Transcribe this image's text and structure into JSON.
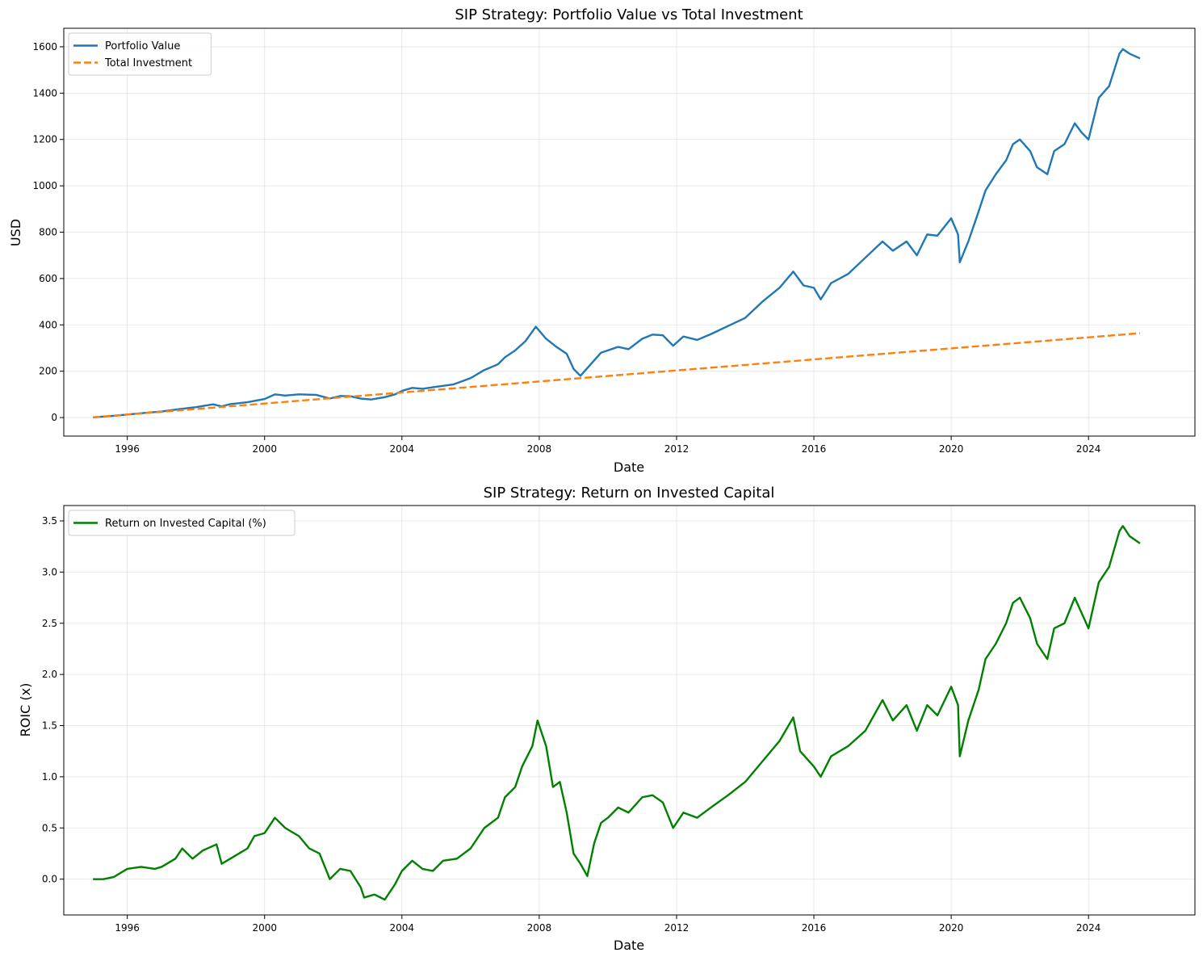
{
  "chart_data": [
    {
      "type": "line",
      "title": "SIP Strategy: Portfolio Value vs Total Investment",
      "xlabel": "Date",
      "ylabel": "USD",
      "xlim": [
        1994.15,
        2027.1
      ],
      "ylim": [
        -80,
        1680
      ],
      "xticks": [
        1996,
        2000,
        2004,
        2008,
        2012,
        2016,
        2020,
        2024
      ],
      "yticks": [
        0,
        200,
        400,
        600,
        800,
        1000,
        1200,
        1400,
        1600
      ],
      "grid": true,
      "legend": "top-left",
      "series": [
        {
          "name": "Portfolio Value",
          "color": "#1f77b4",
          "style": "solid",
          "points": [
            [
              1995.0,
              1
            ],
            [
              1995.5,
              6
            ],
            [
              1996.0,
              13
            ],
            [
              1996.5,
              20
            ],
            [
              1997.0,
              26
            ],
            [
              1997.5,
              36
            ],
            [
              1998.0,
              45
            ],
            [
              1998.5,
              57
            ],
            [
              1998.75,
              48
            ],
            [
              1999.0,
              58
            ],
            [
              1999.5,
              66
            ],
            [
              2000.0,
              80
            ],
            [
              2000.3,
              100
            ],
            [
              2000.6,
              95
            ],
            [
              2001.0,
              100
            ],
            [
              2001.5,
              98
            ],
            [
              2001.9,
              82
            ],
            [
              2002.2,
              93
            ],
            [
              2002.5,
              92
            ],
            [
              2002.8,
              82
            ],
            [
              2003.1,
              78
            ],
            [
              2003.5,
              88
            ],
            [
              2003.8,
              100
            ],
            [
              2004.0,
              115
            ],
            [
              2004.3,
              128
            ],
            [
              2004.6,
              124
            ],
            [
              2005.0,
              133
            ],
            [
              2005.5,
              143
            ],
            [
              2006.0,
              170
            ],
            [
              2006.4,
              205
            ],
            [
              2006.8,
              230
            ],
            [
              2007.0,
              260
            ],
            [
              2007.3,
              290
            ],
            [
              2007.6,
              330
            ],
            [
              2007.9,
              392
            ],
            [
              2008.2,
              340
            ],
            [
              2008.5,
              305
            ],
            [
              2008.8,
              275
            ],
            [
              2009.0,
              210
            ],
            [
              2009.2,
              180
            ],
            [
              2009.5,
              230
            ],
            [
              2009.8,
              280
            ],
            [
              2010.0,
              290
            ],
            [
              2010.3,
              305
            ],
            [
              2010.6,
              295
            ],
            [
              2011.0,
              340
            ],
            [
              2011.3,
              358
            ],
            [
              2011.6,
              355
            ],
            [
              2011.9,
              310
            ],
            [
              2012.2,
              350
            ],
            [
              2012.6,
              335
            ],
            [
              2013.0,
              360
            ],
            [
              2013.5,
              395
            ],
            [
              2014.0,
              430
            ],
            [
              2014.5,
              500
            ],
            [
              2015.0,
              560
            ],
            [
              2015.4,
              630
            ],
            [
              2015.7,
              570
            ],
            [
              2016.0,
              560
            ],
            [
              2016.2,
              510
            ],
            [
              2016.5,
              580
            ],
            [
              2017.0,
              620
            ],
            [
              2017.5,
              690
            ],
            [
              2018.0,
              760
            ],
            [
              2018.3,
              720
            ],
            [
              2018.7,
              760
            ],
            [
              2019.0,
              700
            ],
            [
              2019.3,
              790
            ],
            [
              2019.6,
              785
            ],
            [
              2020.0,
              860
            ],
            [
              2020.2,
              790
            ],
            [
              2020.25,
              670
            ],
            [
              2020.5,
              760
            ],
            [
              2020.8,
              890
            ],
            [
              2021.0,
              980
            ],
            [
              2021.3,
              1050
            ],
            [
              2021.6,
              1110
            ],
            [
              2021.8,
              1180
            ],
            [
              2022.0,
              1200
            ],
            [
              2022.3,
              1150
            ],
            [
              2022.5,
              1080
            ],
            [
              2022.8,
              1050
            ],
            [
              2023.0,
              1150
            ],
            [
              2023.3,
              1180
            ],
            [
              2023.6,
              1270
            ],
            [
              2023.8,
              1230
            ],
            [
              2024.0,
              1200
            ],
            [
              2024.3,
              1380
            ],
            [
              2024.6,
              1430
            ],
            [
              2024.9,
              1570
            ],
            [
              2025.0,
              1590
            ],
            [
              2025.2,
              1570
            ],
            [
              2025.5,
              1550
            ]
          ]
        },
        {
          "name": "Total Investment",
          "color": "#ff7f0e",
          "style": "dashed",
          "points": [
            [
              1995.0,
              1
            ],
            [
              2025.5,
              364
            ]
          ]
        }
      ]
    },
    {
      "type": "line",
      "title": "SIP Strategy: Return on Invested Capital",
      "xlabel": "Date",
      "ylabel": "ROIC (x)",
      "xlim": [
        1994.15,
        2027.1
      ],
      "ylim": [
        -0.35,
        3.65
      ],
      "xticks": [
        1996,
        2000,
        2004,
        2008,
        2012,
        2016,
        2020,
        2024
      ],
      "yticks": [
        0.0,
        0.5,
        1.0,
        1.5,
        2.0,
        2.5,
        3.0,
        3.5
      ],
      "ytick_labels": [
        "0.0",
        "0.5",
        "1.0",
        "1.5",
        "2.0",
        "2.5",
        "3.0",
        "3.5"
      ],
      "grid": true,
      "legend": "top-left",
      "series": [
        {
          "name": "Return on Invested Capital (%)",
          "color": "#008000",
          "style": "solid",
          "points": [
            [
              1995.0,
              0.0
            ],
            [
              1995.3,
              0.0
            ],
            [
              1995.6,
              0.02
            ],
            [
              1996.0,
              0.1
            ],
            [
              1996.4,
              0.12
            ],
            [
              1996.8,
              0.1
            ],
            [
              1997.0,
              0.12
            ],
            [
              1997.4,
              0.2
            ],
            [
              1997.6,
              0.3
            ],
            [
              1997.9,
              0.2
            ],
            [
              1998.2,
              0.28
            ],
            [
              1998.6,
              0.34
            ],
            [
              1998.75,
              0.15
            ],
            [
              1999.0,
              0.2
            ],
            [
              1999.5,
              0.3
            ],
            [
              1999.7,
              0.42
            ],
            [
              2000.0,
              0.45
            ],
            [
              2000.3,
              0.6
            ],
            [
              2000.6,
              0.5
            ],
            [
              2001.0,
              0.42
            ],
            [
              2001.3,
              0.3
            ],
            [
              2001.6,
              0.25
            ],
            [
              2001.9,
              0.0
            ],
            [
              2002.2,
              0.1
            ],
            [
              2002.5,
              0.08
            ],
            [
              2002.8,
              -0.08
            ],
            [
              2002.9,
              -0.18
            ],
            [
              2003.2,
              -0.15
            ],
            [
              2003.5,
              -0.2
            ],
            [
              2003.8,
              -0.05
            ],
            [
              2004.0,
              0.08
            ],
            [
              2004.3,
              0.18
            ],
            [
              2004.6,
              0.1
            ],
            [
              2004.9,
              0.08
            ],
            [
              2005.2,
              0.18
            ],
            [
              2005.6,
              0.2
            ],
            [
              2006.0,
              0.3
            ],
            [
              2006.4,
              0.5
            ],
            [
              2006.8,
              0.6
            ],
            [
              2007.0,
              0.8
            ],
            [
              2007.3,
              0.9
            ],
            [
              2007.5,
              1.1
            ],
            [
              2007.8,
              1.3
            ],
            [
              2007.95,
              1.55
            ],
            [
              2008.2,
              1.3
            ],
            [
              2008.4,
              0.9
            ],
            [
              2008.6,
              0.95
            ],
            [
              2008.8,
              0.65
            ],
            [
              2009.0,
              0.25
            ],
            [
              2009.2,
              0.15
            ],
            [
              2009.4,
              0.03
            ],
            [
              2009.6,
              0.35
            ],
            [
              2009.8,
              0.55
            ],
            [
              2010.0,
              0.6
            ],
            [
              2010.3,
              0.7
            ],
            [
              2010.6,
              0.65
            ],
            [
              2011.0,
              0.8
            ],
            [
              2011.3,
              0.82
            ],
            [
              2011.6,
              0.75
            ],
            [
              2011.9,
              0.5
            ],
            [
              2012.2,
              0.65
            ],
            [
              2012.6,
              0.6
            ],
            [
              2013.0,
              0.7
            ],
            [
              2013.5,
              0.82
            ],
            [
              2014.0,
              0.95
            ],
            [
              2014.5,
              1.15
            ],
            [
              2015.0,
              1.35
            ],
            [
              2015.4,
              1.58
            ],
            [
              2015.6,
              1.25
            ],
            [
              2016.0,
              1.1
            ],
            [
              2016.2,
              1.0
            ],
            [
              2016.5,
              1.2
            ],
            [
              2017.0,
              1.3
            ],
            [
              2017.5,
              1.45
            ],
            [
              2018.0,
              1.75
            ],
            [
              2018.3,
              1.55
            ],
            [
              2018.7,
              1.7
            ],
            [
              2019.0,
              1.45
            ],
            [
              2019.3,
              1.7
            ],
            [
              2019.6,
              1.6
            ],
            [
              2020.0,
              1.88
            ],
            [
              2020.2,
              1.7
            ],
            [
              2020.25,
              1.2
            ],
            [
              2020.5,
              1.55
            ],
            [
              2020.8,
              1.85
            ],
            [
              2021.0,
              2.15
            ],
            [
              2021.3,
              2.3
            ],
            [
              2021.6,
              2.5
            ],
            [
              2021.8,
              2.7
            ],
            [
              2022.0,
              2.75
            ],
            [
              2022.3,
              2.55
            ],
            [
              2022.5,
              2.3
            ],
            [
              2022.8,
              2.15
            ],
            [
              2023.0,
              2.45
            ],
            [
              2023.3,
              2.5
            ],
            [
              2023.6,
              2.75
            ],
            [
              2023.8,
              2.6
            ],
            [
              2024.0,
              2.45
            ],
            [
              2024.3,
              2.9
            ],
            [
              2024.6,
              3.05
            ],
            [
              2024.9,
              3.4
            ],
            [
              2025.0,
              3.45
            ],
            [
              2025.2,
              3.35
            ],
            [
              2025.5,
              3.28
            ]
          ]
        }
      ]
    }
  ]
}
